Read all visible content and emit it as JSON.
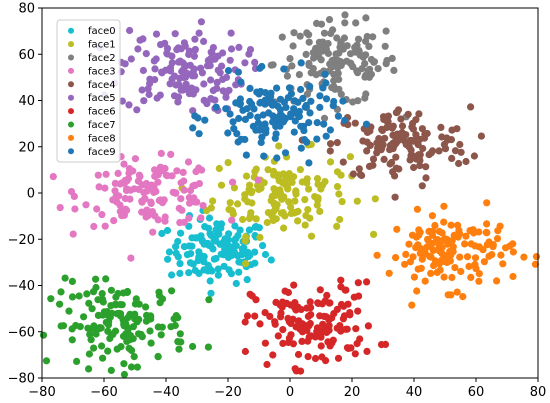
{
  "chart_data": {
    "type": "scatter",
    "title": "",
    "xlabel": "",
    "ylabel": "",
    "xlim": [
      -80,
      80
    ],
    "ylim": [
      -80,
      80
    ],
    "x_ticks": [
      "−80",
      "−60",
      "−40",
      "−20",
      "0",
      "20",
      "40",
      "60",
      "80"
    ],
    "y_ticks": [
      "−80",
      "−60",
      "−40",
      "−20",
      "0",
      "20",
      "40",
      "60",
      "80"
    ],
    "legend_position": "top-left",
    "grid": false,
    "series": [
      {
        "name": "face0",
        "color": "#17becf",
        "center": [
          -23,
          -25
        ],
        "spread": [
          8,
          7
        ],
        "count": 130
      },
      {
        "name": "face1",
        "color": "#bcbd22",
        "center": [
          -3,
          0
        ],
        "spread": [
          11,
          9
        ],
        "count": 140
      },
      {
        "name": "face2",
        "color": "#7f7f7f",
        "center": [
          15,
          56
        ],
        "spread": [
          10,
          9
        ],
        "count": 140
      },
      {
        "name": "face3",
        "color": "#e377c2",
        "center": [
          -45,
          0
        ],
        "spread": [
          11,
          7
        ],
        "count": 135
      },
      {
        "name": "face4",
        "color": "#8c564b",
        "center": [
          36,
          21
        ],
        "spread": [
          11,
          8
        ],
        "count": 140
      },
      {
        "name": "face5",
        "color": "#9467bd",
        "center": [
          -35,
          53
        ],
        "spread": [
          10,
          9
        ],
        "count": 140
      },
      {
        "name": "face6",
        "color": "#d62728",
        "center": [
          8,
          -57
        ],
        "spread": [
          10,
          9
        ],
        "count": 140
      },
      {
        "name": "face7",
        "color": "#2ca02c",
        "center": [
          -55,
          -57
        ],
        "spread": [
          11,
          9
        ],
        "count": 150
      },
      {
        "name": "face8",
        "color": "#ff7f0e",
        "center": [
          52,
          -25
        ],
        "spread": [
          10,
          8
        ],
        "count": 140
      },
      {
        "name": "face9",
        "color": "#1f77b4",
        "center": [
          -5,
          33
        ],
        "spread": [
          10,
          8
        ],
        "count": 140
      }
    ]
  }
}
